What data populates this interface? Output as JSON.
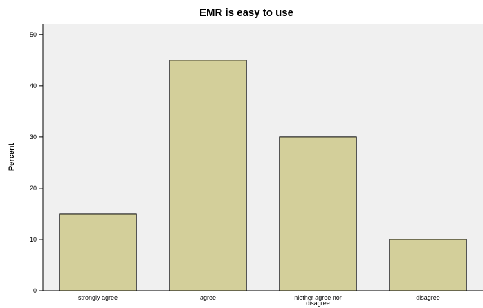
{
  "chart_data": {
    "type": "bar",
    "title": "EMR is easy to use",
    "xlabel": "",
    "ylabel": "Percent",
    "categories": [
      "strongly agree",
      "agree",
      "niether agree nor disagree",
      "disagree"
    ],
    "values": [
      15,
      45,
      30,
      10
    ],
    "ylim": [
      0,
      52
    ],
    "yticks": [
      0,
      10,
      20,
      30,
      40,
      50
    ],
    "grid": false,
    "colors": {
      "bar_fill": "#d3cf9a",
      "bar_stroke": "#000000",
      "plot_background": "#f0f0f0",
      "axis": "#000000"
    }
  }
}
